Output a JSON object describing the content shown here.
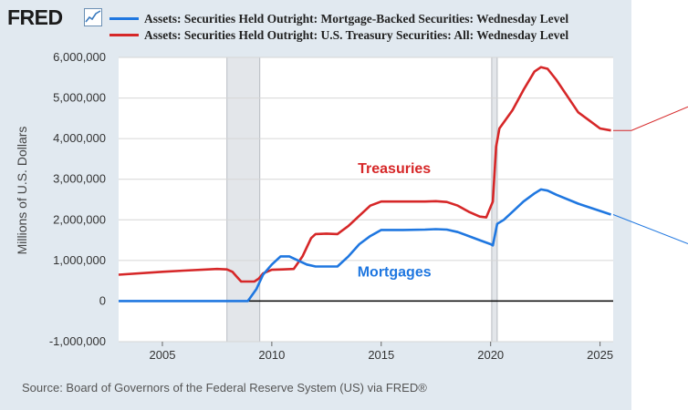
{
  "brand": {
    "logo_text": "FRED",
    "icon": "chart-line-icon"
  },
  "source_text": "Source: Board of Governors of the Federal Reserve System (US) via FRED®",
  "colors": {
    "mbs": "#1f77e0",
    "treasury": "#d62728",
    "recession": "#c6ccd3",
    "panel": "#e1e9f0"
  },
  "chart_data": {
    "type": "line",
    "title": "",
    "xlabel": "",
    "ylabel": "Millions of U.S. Dollars",
    "xlim": [
      2003.0,
      2025.6
    ],
    "ylim": [
      -1000000,
      6000000
    ],
    "y_ticks": [
      6000000,
      5000000,
      4000000,
      3000000,
      2000000,
      1000000,
      0,
      -1000000
    ],
    "y_tick_labels": [
      "6,000,000",
      "5,000,000",
      "4,000,000",
      "3,000,000",
      "2,000,000",
      "1,000,000",
      "0",
      "-1,000,000"
    ],
    "x_ticks": [
      2005,
      2010,
      2015,
      2020,
      2025
    ],
    "x_tick_labels": [
      "2005",
      "2010",
      "2015",
      "2020",
      "2025"
    ],
    "recessions": [
      [
        2007.95,
        2009.45
      ],
      [
        2020.05,
        2020.3
      ]
    ],
    "series": [
      {
        "name": "Assets: Securities Held Outright: Mortgage-Backed Securities: Wednesday Level",
        "label": "Mortgages",
        "color": "#1f77e0",
        "x": [
          2003.0,
          2008.9,
          2009.0,
          2009.3,
          2009.6,
          2010.0,
          2010.4,
          2010.8,
          2011.2,
          2011.6,
          2012.0,
          2012.5,
          2013.0,
          2013.5,
          2014.0,
          2014.5,
          2015.0,
          2016.0,
          2017.0,
          2017.5,
          2018.0,
          2018.5,
          2019.0,
          2019.5,
          2020.0,
          2020.1,
          2020.3,
          2020.6,
          2021.0,
          2021.5,
          2022.0,
          2022.3,
          2022.6,
          2023.0,
          2024.0,
          2025.0,
          2025.5
        ],
        "values": [
          0,
          0,
          70000,
          300000,
          650000,
          900000,
          1100000,
          1100000,
          1000000,
          900000,
          850000,
          850000,
          850000,
          1100000,
          1400000,
          1600000,
          1750000,
          1750000,
          1760000,
          1770000,
          1760000,
          1700000,
          1600000,
          1500000,
          1400000,
          1370000,
          1900000,
          2000000,
          2200000,
          2450000,
          2650000,
          2750000,
          2720000,
          2620000,
          2400000,
          2220000,
          2130000
        ]
      },
      {
        "name": "Assets: Securities Held Outright: U.S. Treasury Securities: All: Wednesday Level",
        "label": "Treasuries",
        "color": "#d62728",
        "x": [
          2003.0,
          2005.0,
          2006.0,
          2007.5,
          2007.95,
          2008.2,
          2008.4,
          2008.6,
          2009.0,
          2009.2,
          2009.4,
          2009.6,
          2010.0,
          2010.5,
          2011.0,
          2011.4,
          2011.8,
          2012.0,
          2012.5,
          2013.0,
          2013.5,
          2014.0,
          2014.5,
          2015.0,
          2016.0,
          2017.0,
          2017.5,
          2018.0,
          2018.5,
          2019.0,
          2019.5,
          2019.8,
          2020.1,
          2020.25,
          2020.4,
          2021.0,
          2021.5,
          2022.0,
          2022.3,
          2022.6,
          2023.0,
          2023.5,
          2024.0,
          2024.5,
          2025.0,
          2025.5
        ],
        "values": [
          650000,
          720000,
          750000,
          790000,
          780000,
          720000,
          600000,
          480000,
          480000,
          480000,
          550000,
          680000,
          770000,
          780000,
          790000,
          1100000,
          1550000,
          1650000,
          1660000,
          1650000,
          1850000,
          2100000,
          2350000,
          2450000,
          2450000,
          2450000,
          2460000,
          2440000,
          2350000,
          2200000,
          2080000,
          2060000,
          2450000,
          3800000,
          4250000,
          4700000,
          5200000,
          5650000,
          5760000,
          5720000,
          5450000,
          5050000,
          4650000,
          4450000,
          4250000,
          4200000
        ]
      }
    ],
    "annotations": [
      {
        "text": "Treasuries",
        "series": "Treasuries",
        "x": 2015.6,
        "y": 3150000
      },
      {
        "text": "Mortgages",
        "series": "Mortgages",
        "x": 2015.6,
        "y": 600000
      }
    ]
  }
}
